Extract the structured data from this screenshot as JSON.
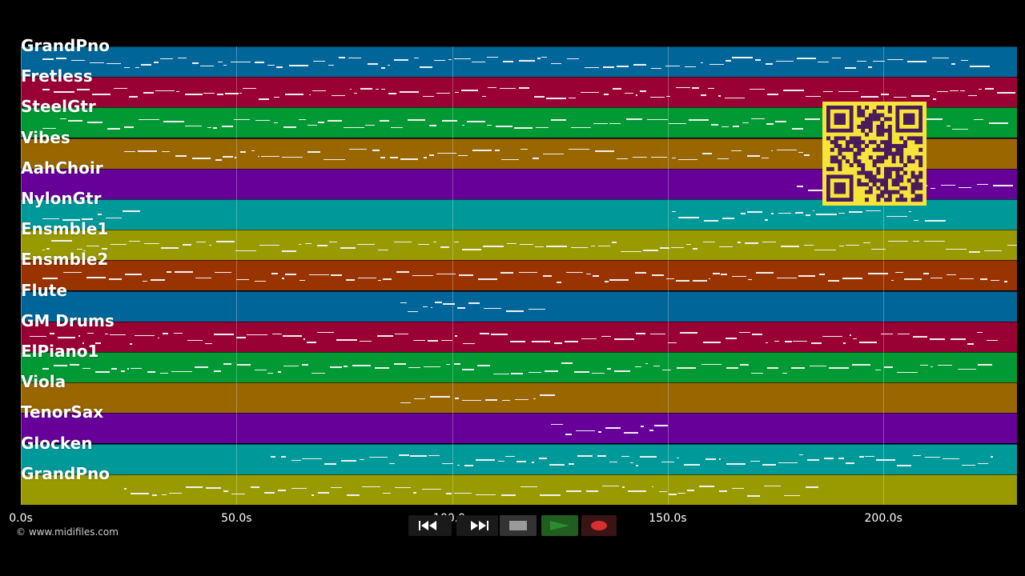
{
  "tracks": [
    {
      "name": "GrandPno",
      "color": "#006699"
    },
    {
      "name": "Fretless",
      "color": "#990033"
    },
    {
      "name": "SteelGtr",
      "color": "#009933"
    },
    {
      "name": "Vibes",
      "color": "#996600"
    },
    {
      "name": "AahChoir",
      "color": "#660099"
    },
    {
      "name": "NylonGtr",
      "color": "#009999"
    },
    {
      "name": "Ensmble1",
      "color": "#999900"
    },
    {
      "name": "Ensmble2",
      "color": "#993300"
    },
    {
      "name": "Flute",
      "color": "#006699"
    },
    {
      "name": "GM Drums",
      "color": "#990033"
    },
    {
      "name": "ElPiano1",
      "color": "#009933"
    },
    {
      "name": "Viola",
      "color": "#996600"
    },
    {
      "name": "TenorSax",
      "color": "#660099"
    },
    {
      "name": "Glocken",
      "color": "#009999"
    },
    {
      "name": "GrandPno",
      "color": "#999900"
    }
  ],
  "timeline": {
    "ticks": [
      "0.0s",
      "50.0s",
      "100.0s",
      "150.0s",
      "200.0s"
    ],
    "tick_seconds": [
      0,
      50,
      100,
      150,
      200
    ],
    "max_seconds": 231
  },
  "credit": "© www.midifiles.com",
  "transport": {
    "rewind_icon": "rewind-icon",
    "fast_forward_icon": "fast-forward-icon",
    "stop_icon": "stop-icon",
    "play_icon": "play-icon",
    "record_icon": "record-icon",
    "play_color": "#2e8b2e",
    "record_color": "#d83030"
  },
  "qr_code": "qr-code-icon"
}
